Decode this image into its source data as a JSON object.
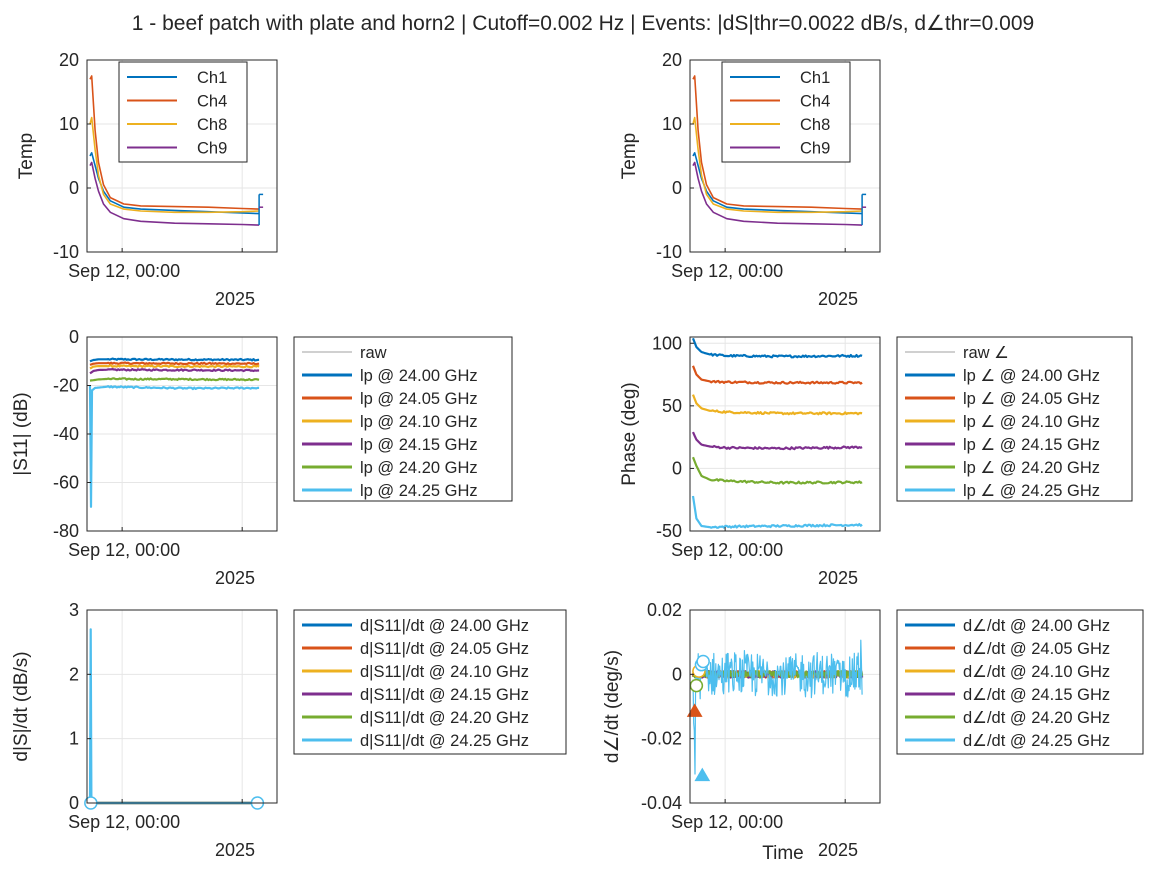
{
  "figure": {
    "title": "1 - beef patch with plate and horn2 | Cutoff=0.002 Hz | Events: |dS|thr=0.0022 dB/s, d∠thr=0.009"
  },
  "colors": {
    "blue": "#0072BD",
    "orange": "#D95319",
    "yellow": "#EDB120",
    "purple": "#7E2F8E",
    "green": "#77AC30",
    "cyan": "#4DBEEE",
    "raw": "#a0a0a0",
    "grid": "#e6e6e6",
    "axis": "#262626"
  },
  "chart_data": [
    {
      "id": "temp-left",
      "type": "line",
      "title": "",
      "xlabel": "",
      "ylabel": "Temp",
      "ylim": [
        -10,
        20
      ],
      "yticks": [
        "20",
        "10",
        "0",
        "-10"
      ],
      "xtick_label": "Sep 12, 00:00",
      "date_label": "2025",
      "grid": true,
      "legend_placement": "top-inside",
      "series": [
        {
          "name": "Ch1",
          "color": "blue",
          "x": [
            0,
            0.01,
            0.03,
            0.05,
            0.08,
            0.12,
            0.2,
            0.3,
            0.5,
            0.7,
            0.9,
            1
          ],
          "values": [
            5,
            5.5,
            3.5,
            1.5,
            -0.5,
            -2,
            -3,
            -3.3,
            -3.5,
            -3.7,
            -3.9,
            -4
          ]
        },
        {
          "name": "Ch4",
          "color": "orange",
          "x": [
            0,
            0.01,
            0.03,
            0.05,
            0.08,
            0.12,
            0.2,
            0.3,
            0.5,
            0.7,
            0.9,
            1
          ],
          "values": [
            17,
            17.5,
            9,
            4,
            0.5,
            -1.5,
            -2.5,
            -2.8,
            -2.9,
            -3,
            -3.2,
            -3.3
          ]
        },
        {
          "name": "Ch8",
          "color": "yellow",
          "x": [
            0,
            0.01,
            0.03,
            0.05,
            0.08,
            0.12,
            0.2,
            0.3,
            0.5,
            0.7,
            0.9,
            1
          ],
          "values": [
            10,
            11,
            6,
            2,
            -1,
            -2.5,
            -3.3,
            -3.6,
            -3.8,
            -3.8,
            -3.7,
            -3.6
          ]
        },
        {
          "name": "Ch9",
          "color": "purple",
          "x": [
            0,
            0.01,
            0.03,
            0.05,
            0.08,
            0.12,
            0.2,
            0.3,
            0.5,
            0.7,
            0.9,
            1
          ],
          "values": [
            3.5,
            4,
            1.5,
            -0.5,
            -2.5,
            -3.8,
            -4.8,
            -5.2,
            -5.5,
            -5.6,
            -5.7,
            -5.8
          ]
        }
      ]
    },
    {
      "id": "temp-right",
      "type": "line",
      "title": "",
      "xlabel": "",
      "ylabel": "Temp",
      "ylim": [
        -10,
        20
      ],
      "yticks": [
        "20",
        "10",
        "0",
        "-10"
      ],
      "xtick_label": "Sep 12, 00:00",
      "date_label": "2025",
      "grid": true,
      "legend_placement": "top-inside",
      "series": [
        {
          "name": "Ch1",
          "color": "blue",
          "x": [
            0,
            0.01,
            0.03,
            0.05,
            0.08,
            0.12,
            0.2,
            0.3,
            0.5,
            0.7,
            0.9,
            1
          ],
          "values": [
            5,
            5.5,
            3.5,
            1.5,
            -0.5,
            -2,
            -3,
            -3.3,
            -3.5,
            -3.7,
            -3.9,
            -4
          ]
        },
        {
          "name": "Ch4",
          "color": "orange",
          "x": [
            0,
            0.01,
            0.03,
            0.05,
            0.08,
            0.12,
            0.2,
            0.3,
            0.5,
            0.7,
            0.9,
            1
          ],
          "values": [
            17,
            17.5,
            9,
            4,
            0.5,
            -1.5,
            -2.5,
            -2.8,
            -2.9,
            -3,
            -3.2,
            -3.3
          ]
        },
        {
          "name": "Ch8",
          "color": "yellow",
          "x": [
            0,
            0.01,
            0.03,
            0.05,
            0.08,
            0.12,
            0.2,
            0.3,
            0.5,
            0.7,
            0.9,
            1
          ],
          "values": [
            10,
            11,
            6,
            2,
            -1,
            -2.5,
            -3.3,
            -3.6,
            -3.8,
            -3.8,
            -3.7,
            -3.6
          ]
        },
        {
          "name": "Ch9",
          "color": "purple",
          "x": [
            0,
            0.01,
            0.03,
            0.05,
            0.08,
            0.12,
            0.2,
            0.3,
            0.5,
            0.7,
            0.9,
            1
          ],
          "values": [
            3.5,
            4,
            1.5,
            -0.5,
            -2.5,
            -3.8,
            -4.8,
            -5.2,
            -5.5,
            -5.6,
            -5.7,
            -5.8
          ]
        }
      ]
    },
    {
      "id": "mag",
      "type": "line",
      "title": "",
      "xlabel": "",
      "ylabel": "|S11| (dB)",
      "ylim": [
        -80,
        0
      ],
      "yticks": [
        "0",
        "-20",
        "-40",
        "-60",
        "-80"
      ],
      "xtick_label": "Sep 12, 00:00",
      "date_label": "2025",
      "grid": true,
      "legend_placement": "outside-right",
      "legend_raw": "raw",
      "series": [
        {
          "name": "lp @ 24.00 GHz",
          "color": "blue",
          "x": [
            0,
            0.02,
            0.05,
            0.1,
            0.5,
            1
          ],
          "values": [
            -10,
            -9.5,
            -9.2,
            -9.2,
            -9.3,
            -9.4
          ]
        },
        {
          "name": "lp @ 24.05 GHz",
          "color": "orange",
          "x": [
            0,
            0.02,
            0.05,
            0.1,
            0.5,
            1
          ],
          "values": [
            -11.5,
            -11,
            -10.8,
            -10.8,
            -10.9,
            -11
          ]
        },
        {
          "name": "lp @ 24.10 GHz",
          "color": "yellow",
          "x": [
            0,
            0.02,
            0.05,
            0.1,
            0.5,
            1
          ],
          "values": [
            -13,
            -12.2,
            -12,
            -12,
            -12.1,
            -12.2
          ]
        },
        {
          "name": "lp @ 24.15 GHz",
          "color": "purple",
          "x": [
            0,
            0.02,
            0.05,
            0.1,
            0.5,
            1
          ],
          "values": [
            -15,
            -14,
            -13.6,
            -13.5,
            -13.6,
            -13.8
          ]
        },
        {
          "name": "lp @ 24.20 GHz",
          "color": "green",
          "x": [
            0,
            0.02,
            0.05,
            0.1,
            0.5,
            1
          ],
          "values": [
            -18,
            -17.8,
            -17.5,
            -17.3,
            -17.4,
            -17.6
          ]
        },
        {
          "name": "lp @ 24.25 GHz",
          "color": "cyan",
          "x": [
            0,
            0.006,
            0.012,
            0.03,
            0.1,
            0.3,
            0.6,
            1
          ],
          "values": [
            -20,
            -70,
            -22,
            -21,
            -20.5,
            -20.8,
            -21.2,
            -21
          ]
        }
      ]
    },
    {
      "id": "phase",
      "type": "line",
      "title": "",
      "xlabel": "",
      "ylabel": "Phase (deg)",
      "ylim": [
        -50,
        105
      ],
      "yticks": [
        "100",
        "50",
        "0",
        "-50"
      ],
      "ytick_values": [
        100,
        50,
        0,
        -50
      ],
      "xtick_label": "Sep 12, 00:00",
      "date_label": "2025",
      "grid": true,
      "legend_placement": "outside-right",
      "legend_raw": "raw ∠",
      "series": [
        {
          "name": "lp ∠ @ 24.00 GHz",
          "color": "blue",
          "x": [
            0,
            0.02,
            0.05,
            0.1,
            0.2,
            0.5,
            1
          ],
          "values": [
            104,
            97,
            93,
            91,
            90,
            89.5,
            90
          ]
        },
        {
          "name": "lp ∠ @ 24.05 GHz",
          "color": "orange",
          "x": [
            0,
            0.02,
            0.05,
            0.1,
            0.2,
            0.5,
            1
          ],
          "values": [
            82,
            75,
            71,
            69.5,
            69,
            68.5,
            68.5
          ]
        },
        {
          "name": "lp ∠ @ 24.10 GHz",
          "color": "yellow",
          "x": [
            0,
            0.02,
            0.05,
            0.1,
            0.2,
            0.5,
            1
          ],
          "values": [
            59,
            52,
            48,
            46,
            45,
            44,
            44
          ]
        },
        {
          "name": "lp ∠ @ 24.15 GHz",
          "color": "purple",
          "x": [
            0,
            0.02,
            0.05,
            0.1,
            0.2,
            0.5,
            1
          ],
          "values": [
            29,
            23,
            19,
            17.5,
            16.5,
            16,
            17
          ]
        },
        {
          "name": "lp ∠ @ 24.20 GHz",
          "color": "green",
          "x": [
            0,
            0.02,
            0.05,
            0.1,
            0.2,
            0.5,
            1
          ],
          "values": [
            9,
            2,
            -6,
            -9,
            -10,
            -11.5,
            -11
          ]
        },
        {
          "name": "lp ∠ @ 24.25 GHz",
          "color": "cyan",
          "x": [
            0,
            0.02,
            0.05,
            0.1,
            0.2,
            0.5,
            1
          ],
          "values": [
            -22,
            -40,
            -46,
            -47,
            -46.5,
            -46,
            -45
          ]
        }
      ]
    },
    {
      "id": "dmag",
      "type": "line",
      "title": "",
      "xlabel": "",
      "ylabel": "d|S|/dt (dB/s)",
      "ylim": [
        0,
        3
      ],
      "yticks": [
        "3",
        "2",
        "1",
        "0"
      ],
      "xtick_label": "Sep 12, 00:00",
      "date_label": "2025",
      "grid": true,
      "legend_placement": "outside-right",
      "series": [
        {
          "name": "d|S11|/dt @ 24.00 GHz",
          "color": "blue",
          "x": [
            0,
            1
          ],
          "values": [
            0,
            0
          ]
        },
        {
          "name": "d|S11|/dt @ 24.05 GHz",
          "color": "orange",
          "x": [
            0,
            1
          ],
          "values": [
            0,
            0
          ]
        },
        {
          "name": "d|S11|/dt @ 24.10 GHz",
          "color": "yellow",
          "x": [
            0,
            1
          ],
          "values": [
            0,
            0
          ]
        },
        {
          "name": "d|S11|/dt @ 24.15 GHz",
          "color": "purple",
          "x": [
            0,
            1
          ],
          "values": [
            0,
            0
          ]
        },
        {
          "name": "d|S11|/dt @ 24.20 GHz",
          "color": "green",
          "x": [
            0,
            1
          ],
          "values": [
            0,
            0
          ]
        },
        {
          "name": "d|S11|/dt @ 24.25 GHz",
          "color": "cyan",
          "x": [
            0,
            0.004,
            0.008,
            0.012,
            1
          ],
          "values": [
            0,
            2.7,
            0,
            0,
            0
          ]
        }
      ],
      "events": [
        {
          "x": 0.005,
          "y": 0
        },
        {
          "x": 0.99,
          "y": 0
        }
      ]
    },
    {
      "id": "dphase",
      "type": "line",
      "title": "",
      "xlabel": "Time",
      "ylabel": "d∠/dt (deg/s)",
      "ylim": [
        -0.04,
        0.02
      ],
      "yticks": [
        "0.02",
        "0",
        "-0.02",
        "-0.04"
      ],
      "xtick_label": "Sep 12, 00:00",
      "date_label": "2025",
      "grid": true,
      "legend_placement": "outside-right",
      "noise_amplitude": 0.008,
      "series": [
        {
          "name": "d∠/dt @ 24.00 GHz",
          "color": "blue",
          "x": [
            0,
            1
          ],
          "values": [
            0,
            0
          ]
        },
        {
          "name": "d∠/dt @ 24.05 GHz",
          "color": "orange",
          "x": [
            0,
            1
          ],
          "values": [
            0,
            0
          ]
        },
        {
          "name": "d∠/dt @ 24.10 GHz",
          "color": "yellow",
          "x": [
            0,
            1
          ],
          "values": [
            0,
            0
          ]
        },
        {
          "name": "d∠/dt @ 24.15 GHz",
          "color": "purple",
          "x": [
            0,
            1
          ],
          "values": [
            0,
            0
          ]
        },
        {
          "name": "d∠/dt @ 24.20 GHz",
          "color": "green",
          "x": [
            0,
            1
          ],
          "values": [
            0,
            0
          ]
        },
        {
          "name": "d∠/dt @ 24.25 GHz",
          "color": "cyan",
          "x": [
            0,
            1
          ],
          "values": [
            0,
            0
          ]
        }
      ],
      "events": [
        {
          "x": 0.01,
          "y": -0.0115,
          "marker": "triangle",
          "color": "orange"
        },
        {
          "x": 0.055,
          "y": -0.0315,
          "marker": "triangle",
          "color": "cyan"
        },
        {
          "x": 0.02,
          "y": -0.0035,
          "marker": "circle",
          "color": "green"
        },
        {
          "x": 0.035,
          "y": 0.001,
          "marker": "circle",
          "color": "yellow"
        },
        {
          "x": 0.05,
          "y": 0.003,
          "marker": "circle",
          "color": "cyan"
        },
        {
          "x": 0.06,
          "y": 0.004,
          "marker": "circle",
          "color": "cyan"
        }
      ]
    }
  ]
}
